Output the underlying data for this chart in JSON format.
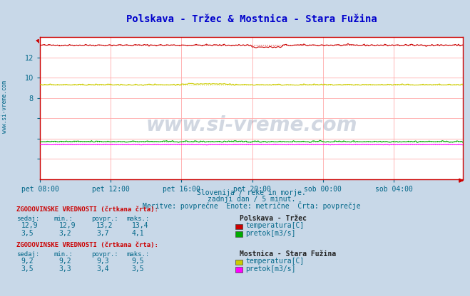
{
  "title": "Polskava - Tržec & Mostnica - Stara Fužina",
  "title_color": "#0000cc",
  "bg_color": "#c8d8e8",
  "plot_bg_color": "#ffffff",
  "grid_color": "#ffaaaa",
  "axis_color": "#cc0000",
  "text_color": "#006688",
  "watermark_text": "www.si-vreme.com",
  "watermark_color": "#1a3a6a",
  "subtitle1": "Slovenija / reke in morje.",
  "subtitle2": "zadnji dan / 5 minut.",
  "subtitle3": "Meritve: povprečne  Enote: metrične  Črta: povprečje",
  "xtick_labels": [
    "pet 08:00",
    "pet 12:00",
    "pet 16:00",
    "pet 20:00",
    "sob 00:00",
    "sob 04:00"
  ],
  "xtick_positions": [
    0,
    48,
    96,
    144,
    192,
    240
  ],
  "ylim": [
    0,
    14
  ],
  "ytick_positions": [
    2,
    4,
    6,
    8,
    10,
    12
  ],
  "ytick_labels": [
    "",
    "",
    "",
    "8",
    "10",
    "12"
  ],
  "n_points": 288,
  "polskava_temp_mean": 13.2,
  "polskava_temp_min": 12.9,
  "polskava_temp_max": 13.4,
  "polskava_temp_now": 12.9,
  "polskava_flow_mean": 3.7,
  "polskava_flow_min": 3.2,
  "polskava_flow_max": 4.1,
  "polskava_flow_now": 3.5,
  "mostnica_temp_mean": 9.3,
  "mostnica_temp_min": 9.2,
  "mostnica_temp_max": 9.5,
  "mostnica_temp_now": 9.2,
  "mostnica_flow_mean": 3.4,
  "mostnica_flow_min": 3.3,
  "mostnica_flow_max": 3.5,
  "mostnica_flow_now": 3.5,
  "polskava_temp_color": "#cc0000",
  "polskava_flow_color": "#00aa00",
  "mostnica_temp_color": "#cccc00",
  "mostnica_flow_color": "#ff00ff",
  "legend_label_polskava": "Polskava - Tržec",
  "legend_label_mostnica": "Mostnica - Stara Fužina",
  "table_header": "ZGODOVINSKE VREDNOSTI (črtkana črta):",
  "table_col1": "sedaj:",
  "table_col2": "min.:",
  "table_col3": "povpr.:",
  "table_col4": "maks.:",
  "label_temp": "temperatura[C]",
  "label_flow": "pretok[m3/s]",
  "sidebar_text": "www.si-vreme.com",
  "sidebar_color": "#006688"
}
